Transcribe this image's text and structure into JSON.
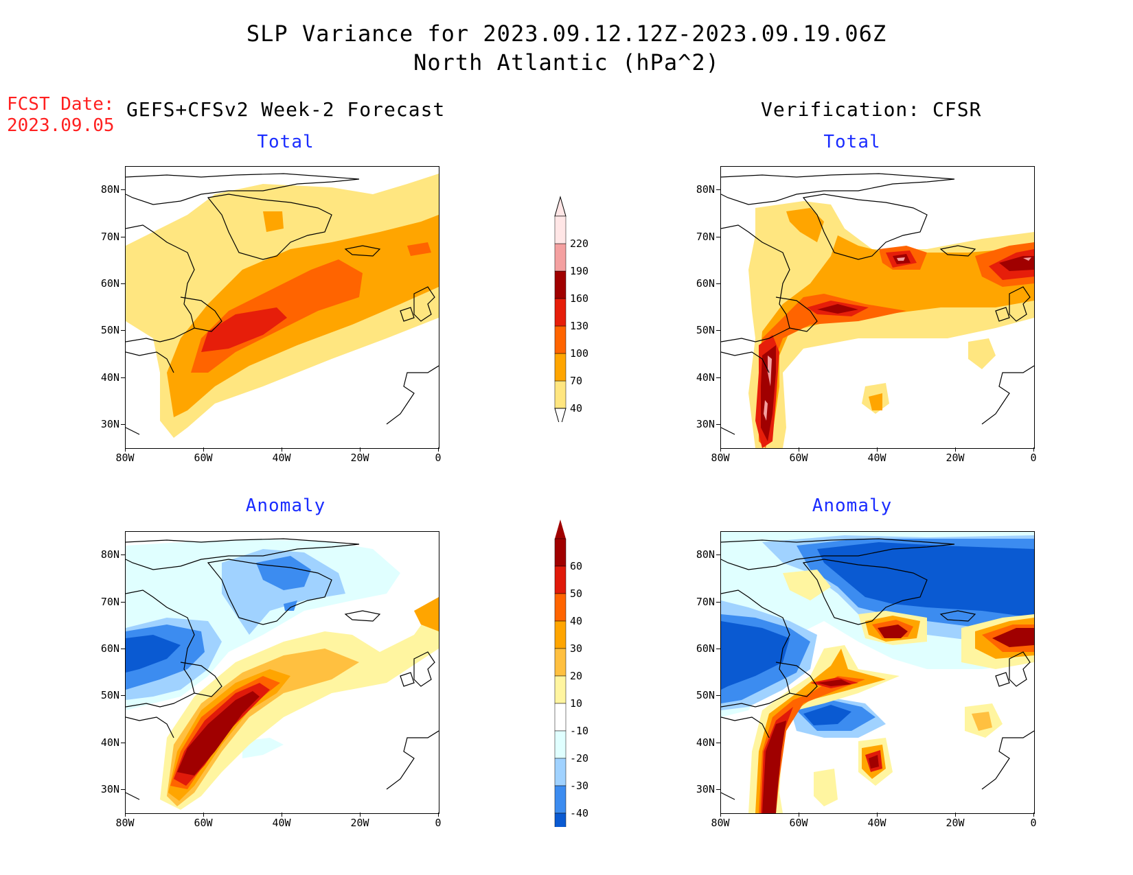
{
  "title": {
    "line1": "SLP Variance for 2023.09.12.12Z-2023.09.19.06Z",
    "line2": "North Atlantic (hPa^2)"
  },
  "fcst_date": {
    "label": "FCST Date:",
    "value": "2023.09.05"
  },
  "left_header": "GEFS+CFSv2 Week-2 Forecast",
  "right_header": "Verification: CFSR",
  "panels": {
    "forecast_total": {
      "title": "Total"
    },
    "verification_total": {
      "title": "Total"
    },
    "forecast_anomaly": {
      "title": "Anomaly"
    },
    "verification_anomaly": {
      "title": "Anomaly"
    }
  },
  "axes": {
    "lon_ticks": [
      "80W",
      "60W",
      "40W",
      "20W",
      "0"
    ],
    "lat_ticks": [
      "80N",
      "70N",
      "60N",
      "50N",
      "40N",
      "30N"
    ],
    "lon_range": [
      -80,
      0
    ],
    "lat_range": [
      25,
      85
    ]
  },
  "total_colorbar": {
    "levels": [
      "40",
      "70",
      "100",
      "130",
      "160",
      "190",
      "220"
    ],
    "colors": [
      "#ffe680",
      "#ffa500",
      "#ff6400",
      "#e61e0a",
      "#a00000",
      "#f4a0a0",
      "#ffe6e6"
    ]
  },
  "anomaly_colorbar": {
    "levels": [
      "60",
      "50",
      "40",
      "30",
      "20",
      "10",
      "-10",
      "-20",
      "-30",
      "-40"
    ],
    "colors": [
      "#a00000",
      "#e01a0a",
      "#ff6400",
      "#ffa500",
      "#ffc040",
      "#fff5a0",
      "#ffffff",
      "#e0ffff",
      "#a0d2ff",
      "#3c8cf0",
      "#0a5ad2"
    ]
  }
}
